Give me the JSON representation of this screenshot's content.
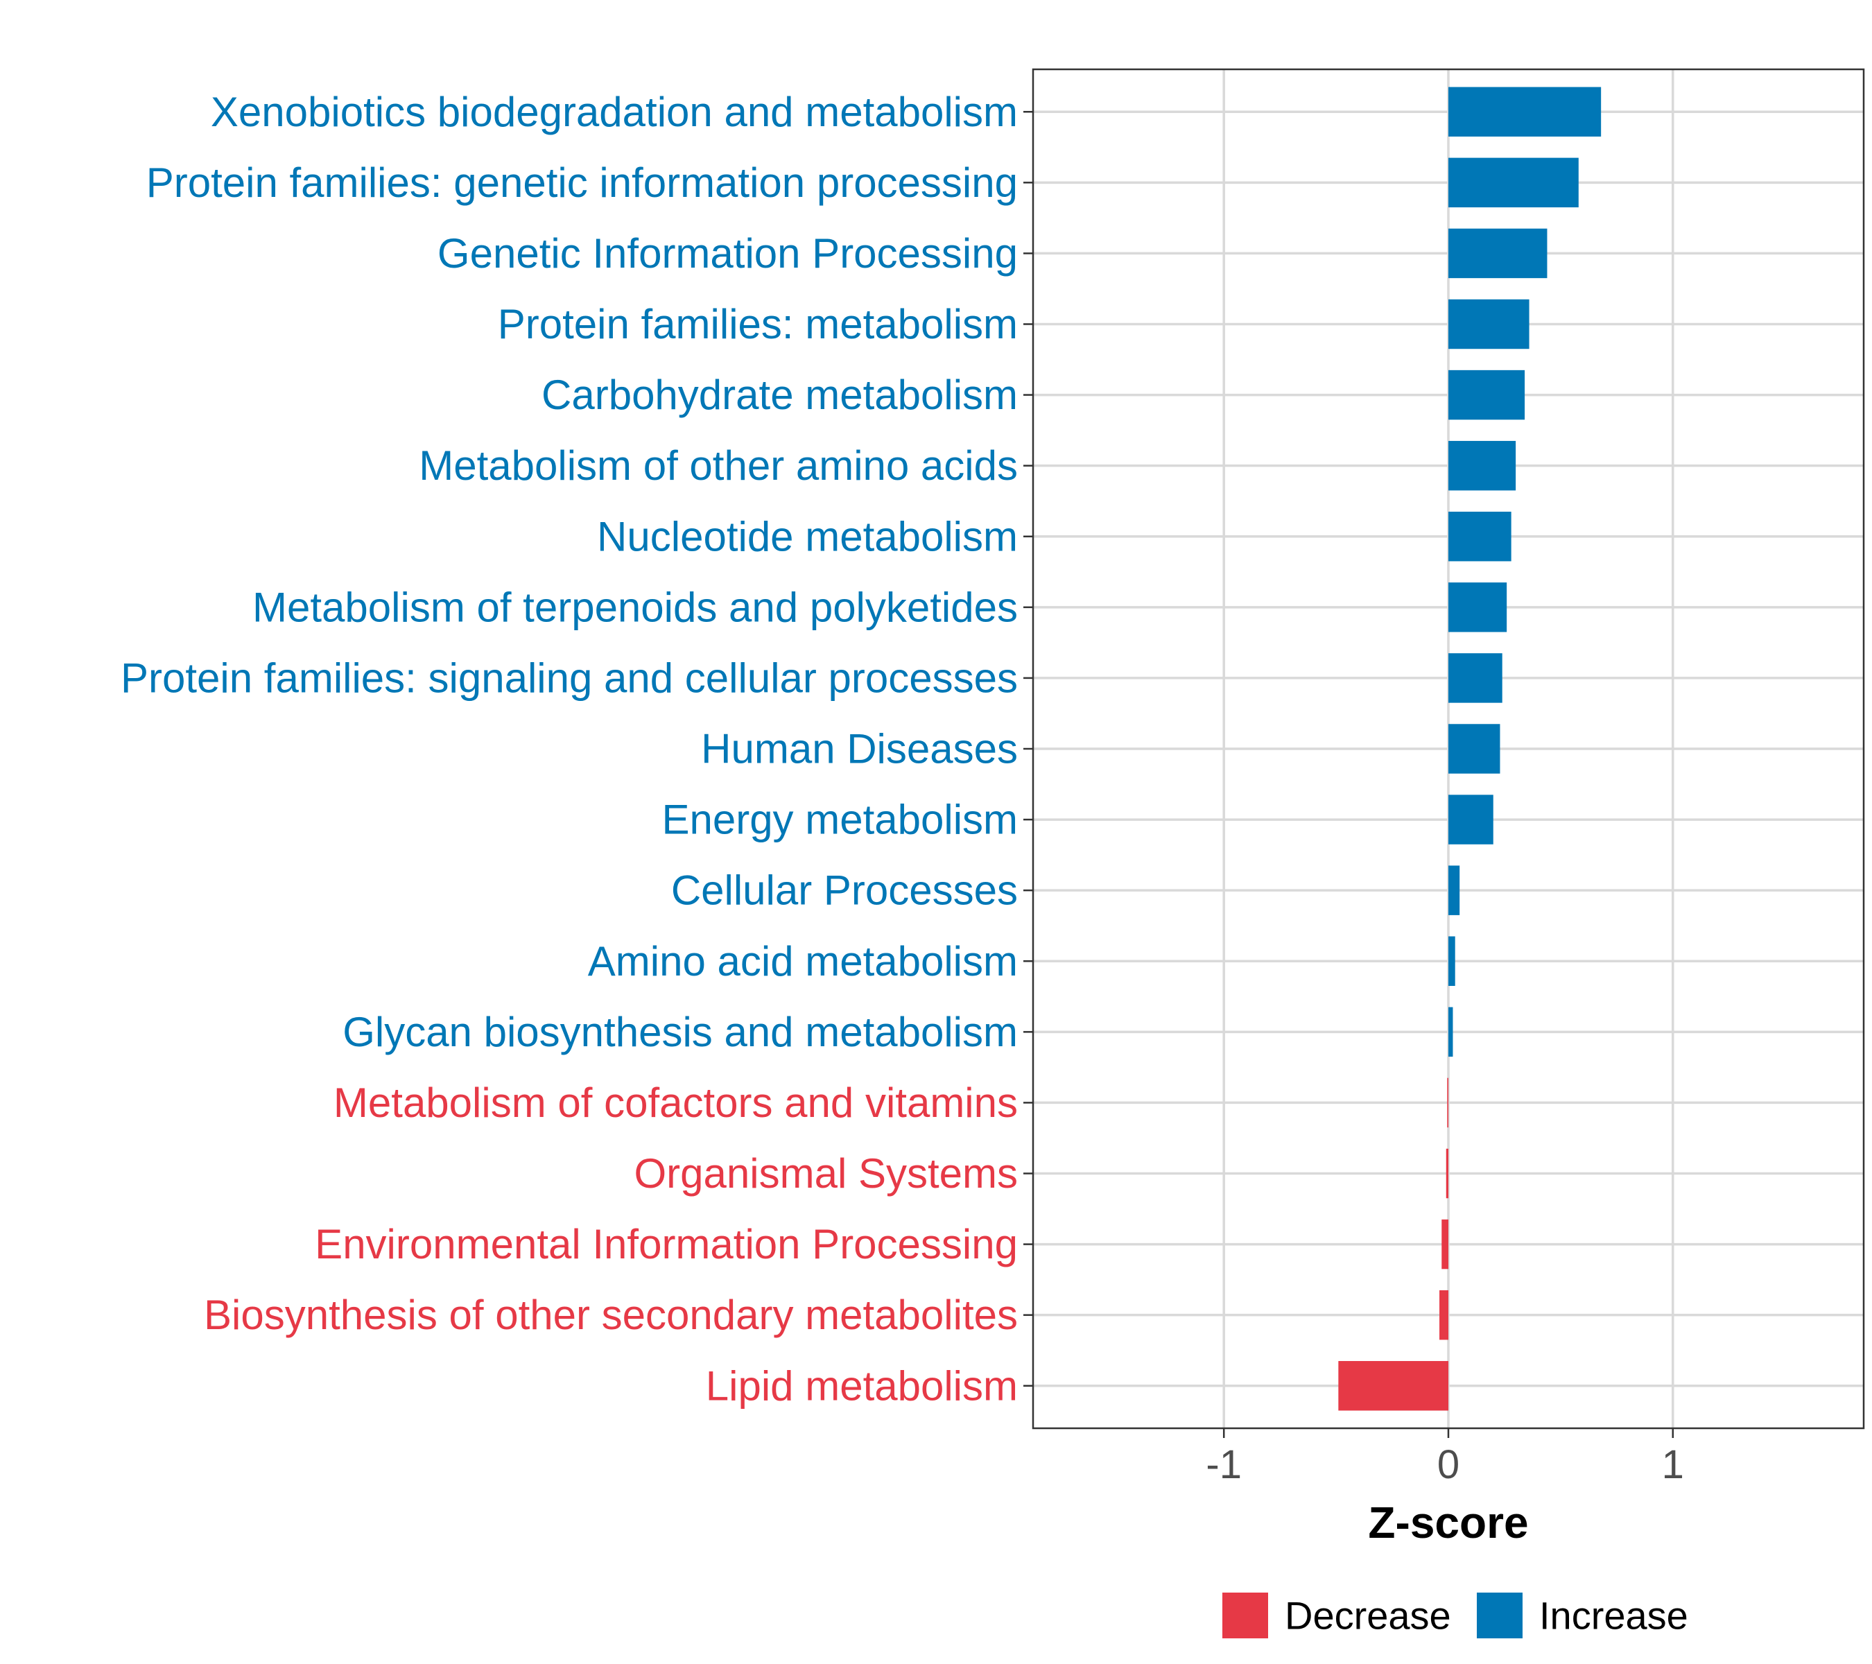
{
  "chart_data": {
    "type": "bar",
    "orientation": "horizontal",
    "categories": [
      "Xenobiotics biodegradation and metabolism",
      "Protein families: genetic information processing",
      "Genetic Information Processing",
      "Protein families: metabolism",
      "Carbohydrate metabolism",
      "Metabolism of other amino acids",
      "Nucleotide metabolism",
      "Metabolism of terpenoids and polyketides",
      "Protein families: signaling and cellular processes",
      "Human Diseases",
      "Energy metabolism",
      "Cellular Processes",
      "Amino acid metabolism",
      "Glycan biosynthesis and metabolism",
      "Metabolism of cofactors and vitamins",
      "Organismal Systems",
      "Environmental Information Processing",
      "Biosynthesis of other secondary metabolites",
      "Lipid metabolism"
    ],
    "values": [
      0.68,
      0.58,
      0.44,
      0.36,
      0.34,
      0.3,
      0.28,
      0.26,
      0.24,
      0.23,
      0.2,
      0.05,
      0.03,
      0.02,
      -0.005,
      -0.01,
      -0.03,
      -0.04,
      -0.49
    ],
    "groups": [
      "Increase",
      "Increase",
      "Increase",
      "Increase",
      "Increase",
      "Increase",
      "Increase",
      "Increase",
      "Increase",
      "Increase",
      "Increase",
      "Increase",
      "Increase",
      "Increase",
      "Decrease",
      "Decrease",
      "Decrease",
      "Decrease",
      "Decrease"
    ],
    "xlabel": "Z-score",
    "ylabel": "",
    "xlim": [
      -1.85,
      1.85
    ],
    "xticks": [
      -1,
      0,
      1
    ],
    "xtick_labels": [
      "-1",
      "0",
      "1"
    ],
    "grid": true,
    "legend": [
      {
        "label": "Decrease",
        "color": "#e63946"
      },
      {
        "label": "Increase",
        "color": "#0077b6"
      }
    ],
    "legend_position": "bottom",
    "colors": {
      "Decrease": "#e63946",
      "Increase": "#0077b6"
    }
  }
}
